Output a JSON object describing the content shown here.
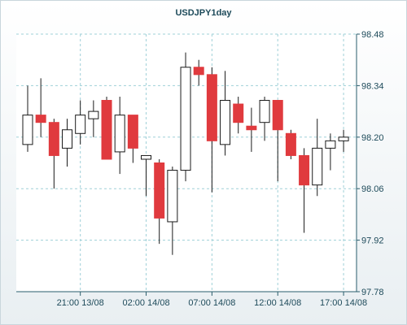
{
  "chart_data": {
    "type": "candlestick",
    "title": "USDJPY1day",
    "y_ticks": [
      "98.48",
      "98.34",
      "98.20",
      "98.06",
      "97.92",
      "97.78"
    ],
    "ylim": [
      97.78,
      98.48
    ],
    "x_ticks": [
      "21:00 13/08",
      "02:00 14/08",
      "07:00 14/08",
      "12:00 14/08",
      "17:00 14/08"
    ],
    "x_tick_index": [
      4,
      9,
      14,
      19,
      24
    ],
    "grid": true,
    "colors": {
      "up": "#ffffff",
      "down": "#e03a3e",
      "outline": "#1a1a1a",
      "grid": "#9fd0d8",
      "axis": "#2a5d6c"
    },
    "candles": [
      {
        "o": 98.18,
        "h": 98.34,
        "l": 98.16,
        "c": 98.26
      },
      {
        "o": 98.26,
        "h": 98.36,
        "l": 98.2,
        "c": 98.24
      },
      {
        "o": 98.24,
        "h": 98.25,
        "l": 98.06,
        "c": 98.15
      },
      {
        "o": 98.17,
        "h": 98.25,
        "l": 98.12,
        "c": 98.22
      },
      {
        "o": 98.21,
        "h": 98.3,
        "l": 98.18,
        "c": 98.26
      },
      {
        "o": 98.25,
        "h": 98.3,
        "l": 98.2,
        "c": 98.27
      },
      {
        "o": 98.3,
        "h": 98.31,
        "l": 98.14,
        "c": 98.14
      },
      {
        "o": 98.16,
        "h": 98.31,
        "l": 98.1,
        "c": 98.26
      },
      {
        "o": 98.26,
        "h": 98.26,
        "l": 98.13,
        "c": 98.17
      },
      {
        "o": 98.14,
        "h": 98.15,
        "l": 98.04,
        "c": 98.15
      },
      {
        "o": 98.13,
        "h": 98.14,
        "l": 97.91,
        "c": 97.98
      },
      {
        "o": 97.97,
        "h": 98.12,
        "l": 97.88,
        "c": 98.11
      },
      {
        "o": 98.11,
        "h": 98.43,
        "l": 98.08,
        "c": 98.39
      },
      {
        "o": 98.39,
        "h": 98.41,
        "l": 98.34,
        "c": 98.37
      },
      {
        "o": 98.37,
        "h": 98.39,
        "l": 98.05,
        "c": 98.19
      },
      {
        "o": 98.18,
        "h": 98.38,
        "l": 98.15,
        "c": 98.3
      },
      {
        "o": 98.29,
        "h": 98.31,
        "l": 98.21,
        "c": 98.24
      },
      {
        "o": 98.23,
        "h": 98.28,
        "l": 98.16,
        "c": 98.22
      },
      {
        "o": 98.24,
        "h": 98.31,
        "l": 98.19,
        "c": 98.3
      },
      {
        "o": 98.3,
        "h": 98.3,
        "l": 98.08,
        "c": 98.22
      },
      {
        "o": 98.21,
        "h": 98.22,
        "l": 98.14,
        "c": 98.15
      },
      {
        "o": 98.15,
        "h": 98.17,
        "l": 97.94,
        "c": 98.07
      },
      {
        "o": 98.07,
        "h": 98.25,
        "l": 98.04,
        "c": 98.17
      },
      {
        "o": 98.17,
        "h": 98.21,
        "l": 98.11,
        "c": 98.19
      },
      {
        "o": 98.19,
        "h": 98.22,
        "l": 98.16,
        "c": 98.2
      }
    ]
  }
}
